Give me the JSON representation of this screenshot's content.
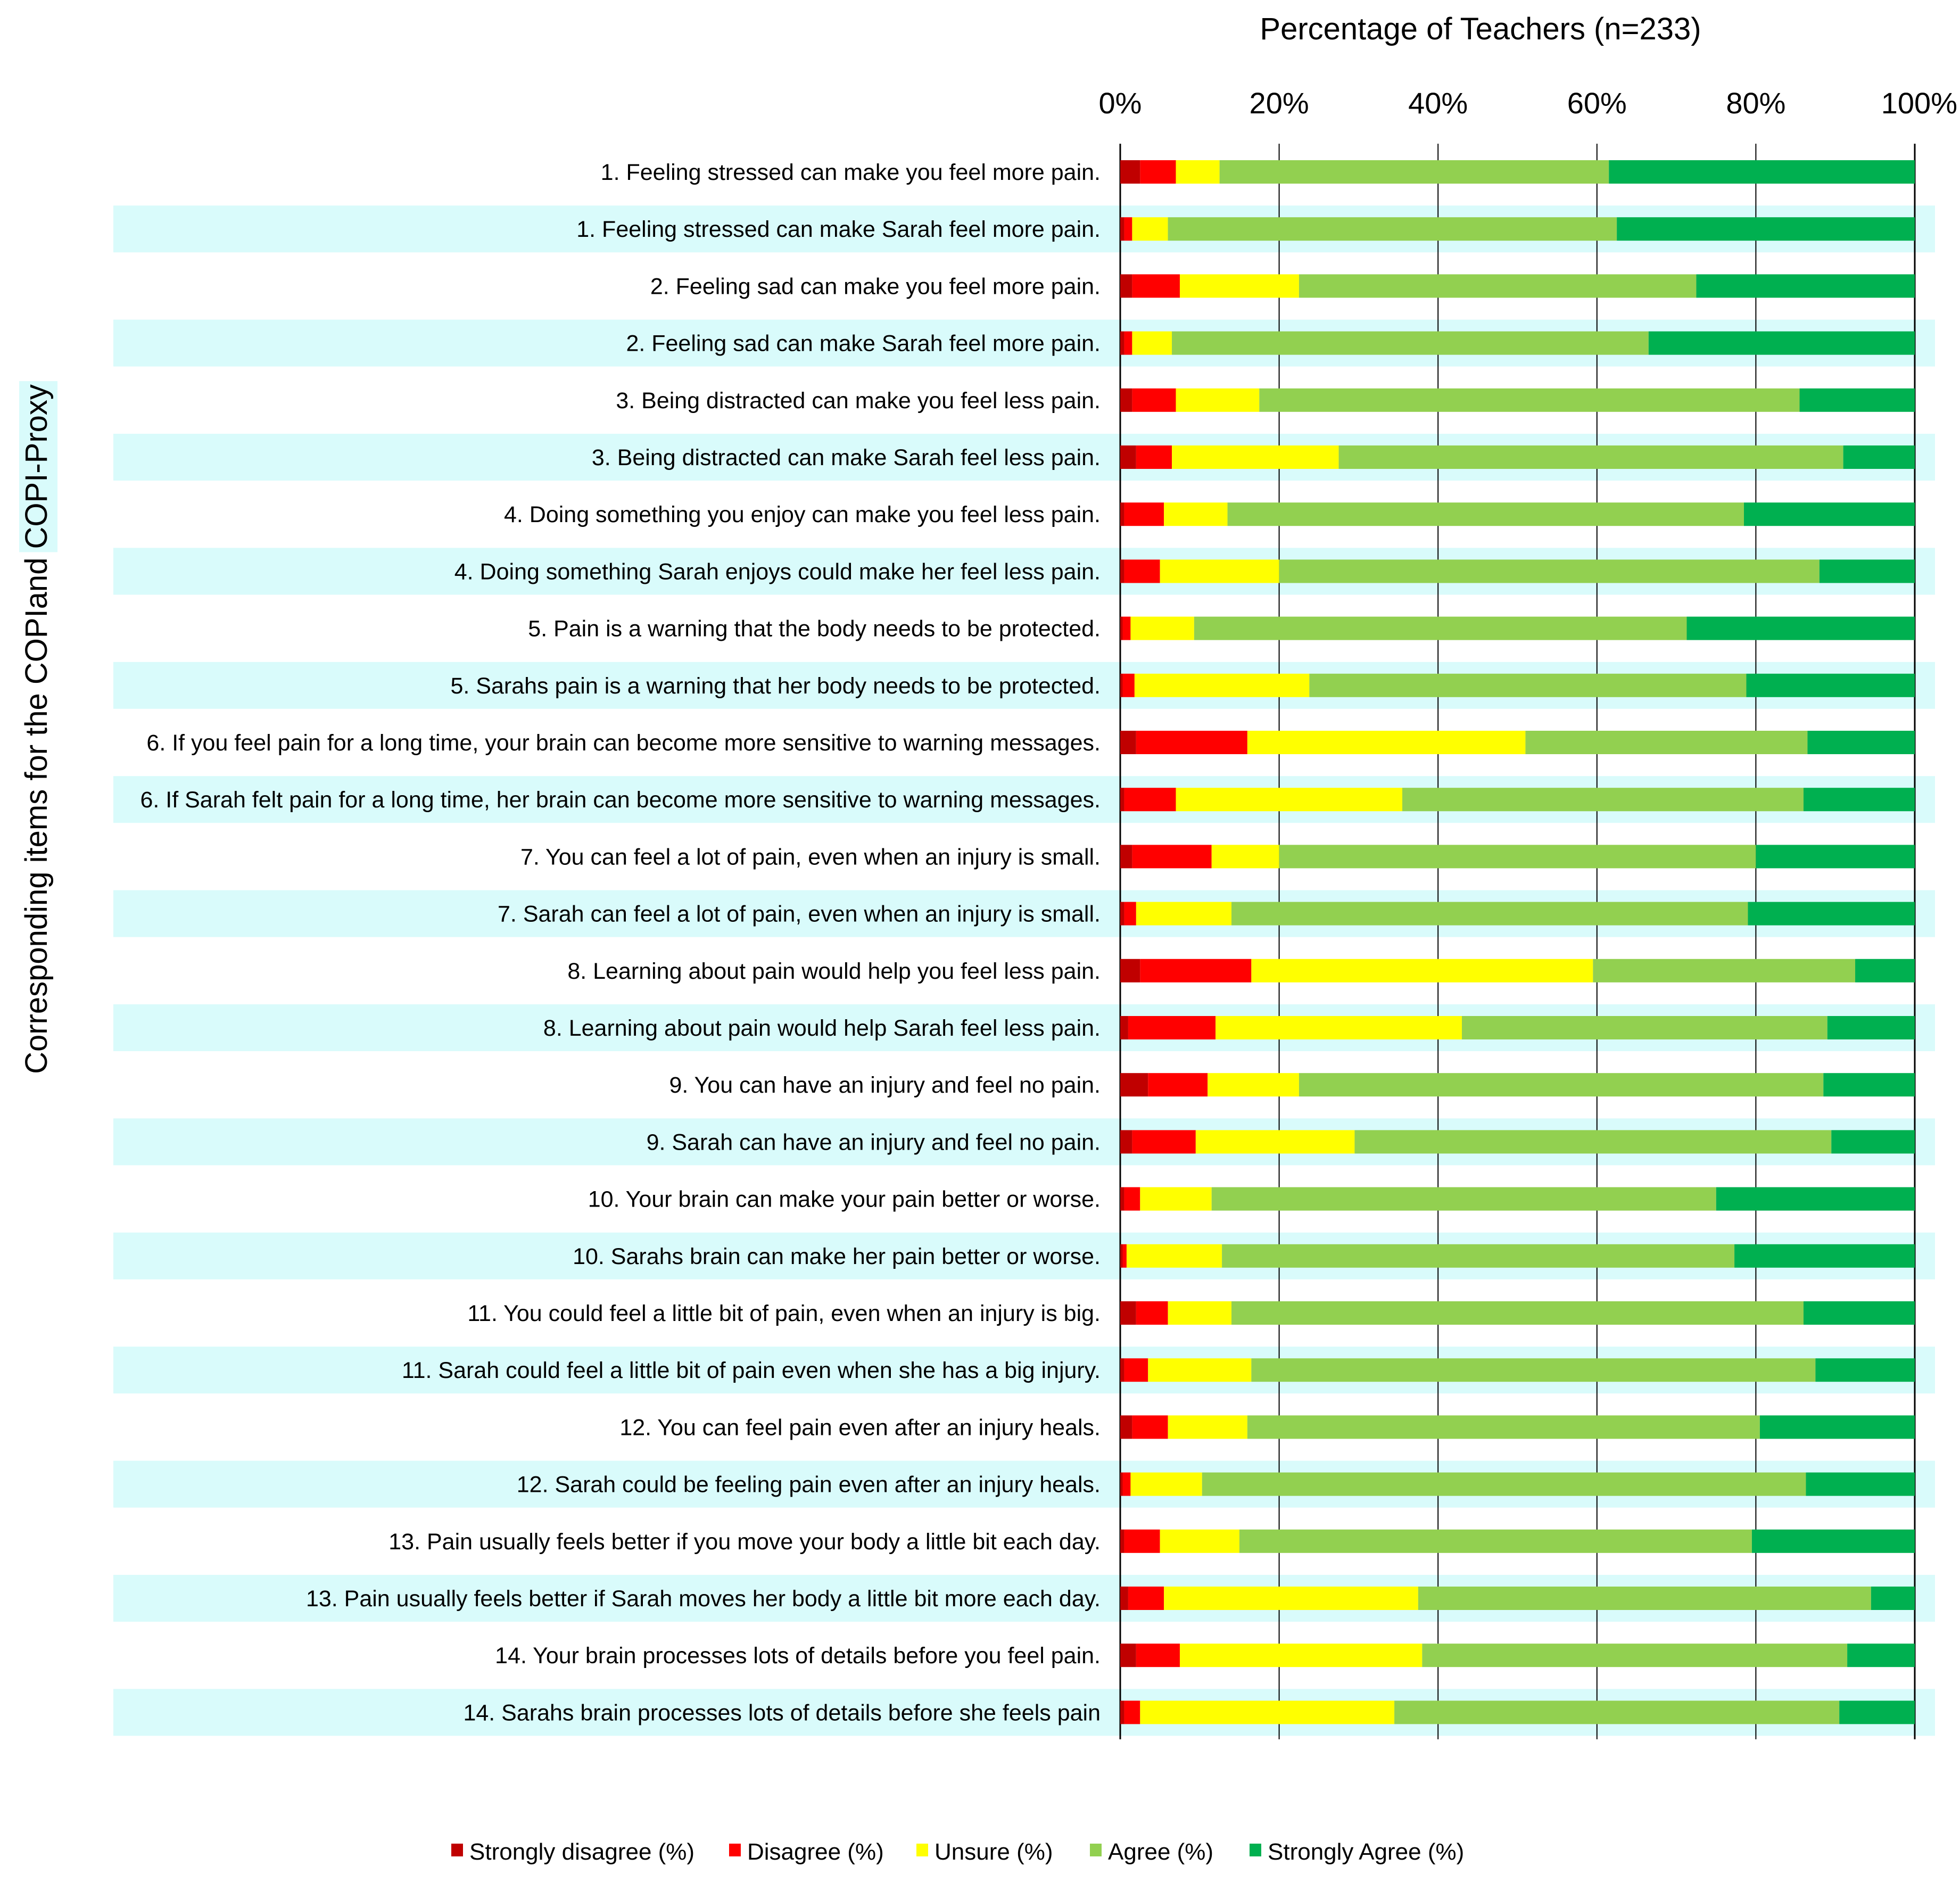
{
  "chart_data": {
    "type": "bar",
    "orientation": "horizontal",
    "stacked": "percent",
    "title": "",
    "xlabel": "Percentage of Teachers (n=233)",
    "ylabel": "Corresponding items for the COPIand COPI-Proxy",
    "ylabel_parts": {
      "plain": "Corresponding items for the COPIand ",
      "highlighted": "COPI-Proxy"
    },
    "xlim": [
      0,
      100
    ],
    "x_ticks": [
      "0%",
      "20%",
      "40%",
      "60%",
      "80%",
      "100%"
    ],
    "x_tick_values": [
      0,
      20,
      40,
      60,
      80,
      100
    ],
    "grid": true,
    "legend_position": "bottom",
    "row_highlight_color": "#d9fbfb",
    "categories": [
      "1. Feeling stressed can make you feel more pain.",
      "1. Feeling stressed can make Sarah feel more pain.",
      "2. Feeling sad can make you feel more pain.",
      "2. Feeling sad can make Sarah feel more pain.",
      "3. Being distracted can make you feel less pain.",
      "3. Being distracted can make Sarah feel less pain.",
      "4. Doing something you enjoy can make you feel less pain.",
      "4. Doing something Sarah enjoys could make her feel less pain.",
      "5. Pain is a warning that the body needs to be protected.",
      "5. Sarahs pain is a warning that her body needs to be protected.",
      "6. If you feel pain for a long time, your brain can become more sensitive to warning messages.",
      "6. If Sarah felt pain for a long time, her brain can become more sensitive to warning messages.",
      "7. You can feel a lot of pain, even when an injury is small.",
      "7. Sarah can feel a lot of pain, even when an injury is small.",
      "8.  Learning about pain would help you feel less pain.",
      "8. Learning about pain would help Sarah feel less pain.",
      "9. You can have an injury and feel no pain.",
      "9. Sarah can have an injury and feel no pain.",
      "10. Your brain can make your pain better or worse.",
      "10. Sarahs brain can make her pain better or worse.",
      "11. You could feel a little bit of pain, even when an injury is big.",
      "11. Sarah could feel a little bit of pain even when she has a big injury.",
      "12. You can feel pain even after an injury heals.",
      "12. Sarah could be feeling pain even after an injury heals.",
      "13. Pain usually feels better if you move your body a little bit each day.",
      "13. Pain usually feels better if Sarah moves her body a little bit more each day.",
      "14. Your brain processes lots of details before you feel pain.",
      "14. Sarahs brain processes lots of details before she feels pain"
    ],
    "highlighted_rows": [
      1,
      3,
      5,
      7,
      9,
      11,
      13,
      15,
      17,
      19,
      21,
      23,
      25,
      27
    ],
    "series": [
      {
        "name": "Strongly disagree (%)",
        "color": "#c00000",
        "values": [
          2.5,
          0.5,
          1.5,
          0.5,
          1.5,
          2.0,
          0.5,
          0.5,
          0.3,
          0.3,
          2.0,
          0.5,
          1.5,
          0.5,
          2.5,
          1.0,
          3.5,
          1.5,
          0.5,
          0.3,
          2.0,
          0.5,
          1.5,
          0.3,
          0.5,
          1.0,
          2.0,
          0.5
        ]
      },
      {
        "name": "Disagree (%)",
        "color": "#ff0000",
        "values": [
          4.5,
          1.0,
          6.0,
          1.0,
          5.5,
          4.5,
          5.0,
          4.5,
          1.0,
          1.5,
          14.0,
          6.5,
          10.0,
          1.5,
          14.0,
          11.0,
          7.5,
          8.0,
          2.0,
          0.5,
          4.0,
          3.0,
          4.5,
          1.0,
          4.5,
          4.5,
          5.5,
          2.0
        ]
      },
      {
        "name": "Unsure (%)",
        "color": "#ffff00",
        "values": [
          5.5,
          4.5,
          15.0,
          5.0,
          10.5,
          21.0,
          8.0,
          15.0,
          8.0,
          22.0,
          35.0,
          28.5,
          8.5,
          12.0,
          43.0,
          31.0,
          11.5,
          20.0,
          9.0,
          12.0,
          8.0,
          13.0,
          10.0,
          9.0,
          10.0,
          32.0,
          30.5,
          32.0
        ]
      },
      {
        "name": "Agree (%)",
        "color": "#92d050",
        "values": [
          49.0,
          56.5,
          50.0,
          60.0,
          68.0,
          63.5,
          65.0,
          68.0,
          62.0,
          55.0,
          35.5,
          50.5,
          60.0,
          65.0,
          33.0,
          46.0,
          66.0,
          60.0,
          63.5,
          64.5,
          72.0,
          71.0,
          64.5,
          76.0,
          64.5,
          57.0,
          53.5,
          56.0
        ]
      },
      {
        "name": "Strongly Agree (%)",
        "color": "#00b050",
        "values": [
          38.5,
          37.5,
          27.5,
          33.5,
          14.5,
          9.0,
          21.5,
          12.0,
          28.7,
          21.2,
          13.5,
          14.0,
          20.0,
          21.0,
          7.5,
          11.0,
          11.5,
          10.5,
          25.0,
          22.7,
          14.0,
          12.5,
          19.5,
          13.7,
          20.5,
          5.5,
          8.5,
          9.5
        ]
      }
    ]
  }
}
